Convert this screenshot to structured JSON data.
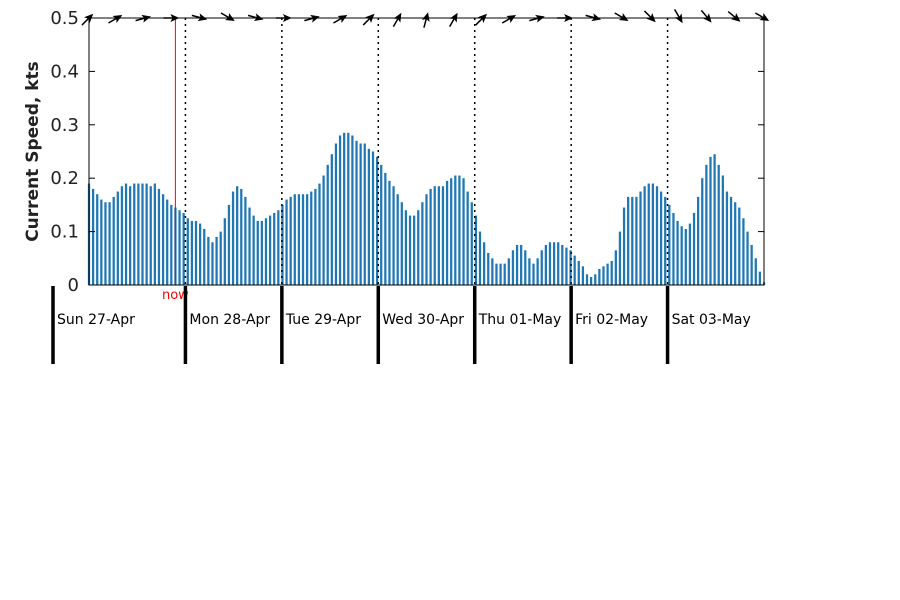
{
  "chart_data": {
    "type": "bar",
    "ylabel": "Current Speed, kts",
    "ylim": [
      0,
      0.5
    ],
    "yticks": [
      0,
      0.1,
      0.2,
      0.3,
      0.4,
      0.5
    ],
    "ytick_labels": [
      "0",
      "0.1",
      "0.2",
      "0.3",
      "0.4",
      "0.5"
    ],
    "grid": false,
    "x_unit": "hours since start of Sun 27-Apr",
    "x_range": [
      0,
      168
    ],
    "day_labels": [
      "Sun 27-Apr",
      "Mon 28-Apr",
      "Tue 29-Apr",
      "Wed 30-Apr",
      "Thu 01-May",
      "Fri 02-May",
      "Sat 03-May"
    ],
    "now_label": "now",
    "now_hour": 21.5,
    "colors": {
      "bar": "#1f77b4",
      "now": "#ff0000",
      "axis": "#000000",
      "arrow": "#000000"
    },
    "values": [
      0.19,
      0.18,
      0.17,
      0.16,
      0.155,
      0.155,
      0.165,
      0.175,
      0.185,
      0.19,
      0.185,
      0.19,
      0.19,
      0.19,
      0.19,
      0.185,
      0.19,
      0.18,
      0.17,
      0.16,
      0.15,
      0.145,
      0.14,
      0.135,
      0.125,
      0.12,
      0.12,
      0.115,
      0.105,
      0.09,
      0.08,
      0.09,
      0.1,
      0.125,
      0.15,
      0.175,
      0.185,
      0.18,
      0.165,
      0.145,
      0.13,
      0.12,
      0.12,
      0.125,
      0.13,
      0.135,
      0.14,
      0.15,
      0.16,
      0.165,
      0.17,
      0.17,
      0.17,
      0.17,
      0.175,
      0.18,
      0.19,
      0.205,
      0.225,
      0.245,
      0.265,
      0.28,
      0.285,
      0.285,
      0.28,
      0.27,
      0.265,
      0.265,
      0.255,
      0.25,
      0.24,
      0.225,
      0.21,
      0.195,
      0.185,
      0.17,
      0.155,
      0.14,
      0.13,
      0.13,
      0.14,
      0.155,
      0.17,
      0.18,
      0.185,
      0.185,
      0.185,
      0.195,
      0.2,
      0.205,
      0.205,
      0.2,
      0.175,
      0.155,
      0.13,
      0.1,
      0.08,
      0.06,
      0.05,
      0.04,
      0.04,
      0.04,
      0.05,
      0.065,
      0.075,
      0.075,
      0.065,
      0.05,
      0.04,
      0.05,
      0.065,
      0.075,
      0.08,
      0.08,
      0.08,
      0.075,
      0.07,
      0.065,
      0.055,
      0.045,
      0.035,
      0.02,
      0.015,
      0.02,
      0.03,
      0.035,
      0.04,
      0.045,
      0.065,
      0.1,
      0.145,
      0.165,
      0.165,
      0.165,
      0.175,
      0.185,
      0.19,
      0.19,
      0.185,
      0.175,
      0.165,
      0.15,
      0.135,
      0.12,
      0.11,
      0.105,
      0.115,
      0.135,
      0.165,
      0.2,
      0.225,
      0.24,
      0.245,
      0.225,
      0.205,
      0.175,
      0.165,
      0.155,
      0.145,
      0.125,
      0.1,
      0.075,
      0.05,
      0.025,
      0.005
    ],
    "direction_arrows_deg": [
      -45,
      -30,
      -15,
      0,
      15,
      30,
      15,
      0,
      -15,
      -30,
      -45,
      -60,
      -75,
      -60,
      -45,
      -30,
      -15,
      0,
      15,
      30,
      45,
      60,
      50,
      40,
      30
    ]
  }
}
